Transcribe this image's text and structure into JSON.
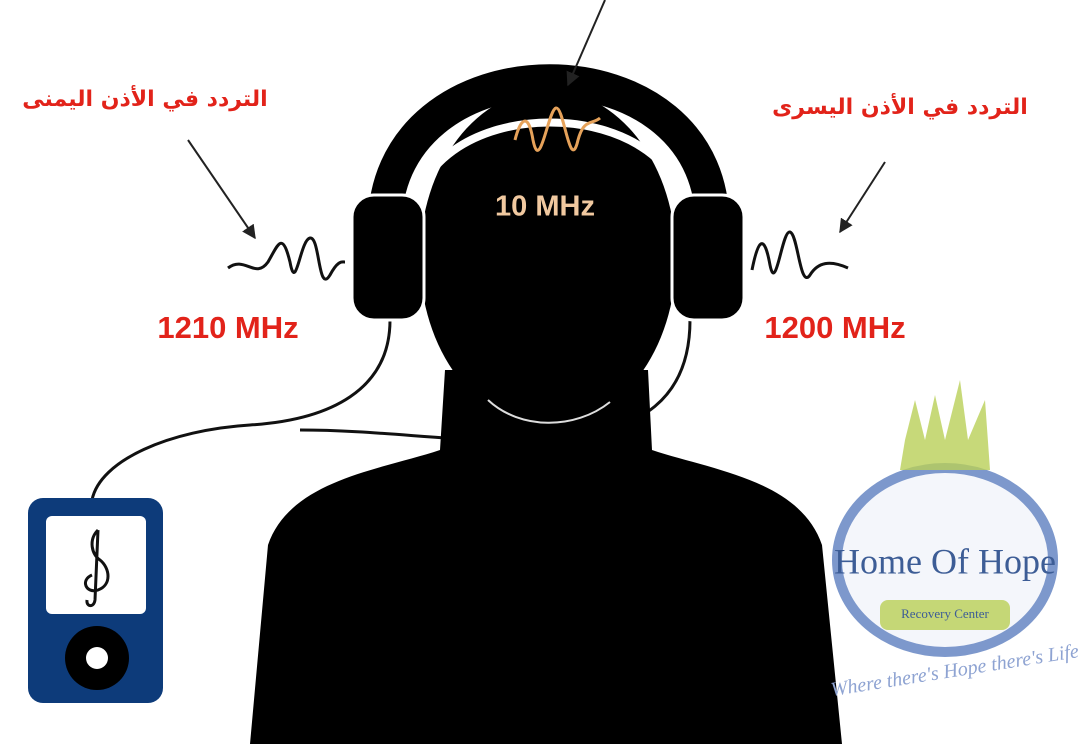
{
  "labels": {
    "right_ear": {
      "caption": "التردد في الأذن اليمنى",
      "frequency": "1210 MHz"
    },
    "left_ear": {
      "caption": "التردد في الأذن اليسرى",
      "frequency": "1200 MHz"
    },
    "brain": {
      "frequency": "10 MHz"
    }
  },
  "logo": {
    "name": "Home Of Hope",
    "subtitle": "Recovery Center",
    "tagline": "Where there's Hope there's Life"
  }
}
